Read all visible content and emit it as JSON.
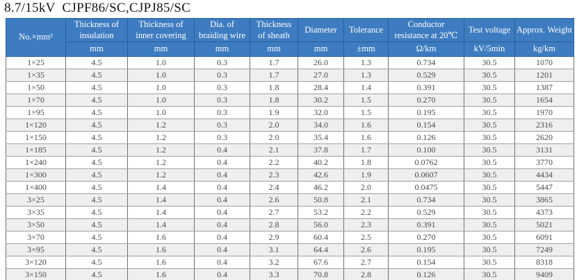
{
  "title": "8.7/15kV  CJPF86/SC,CJPJ85/SC",
  "table": {
    "columns": [
      {
        "label": "No.×mm²",
        "unit": ""
      },
      {
        "label": "Thickness of insulation",
        "unit": "mm"
      },
      {
        "label": "Thickness of inner covering",
        "unit": "mm"
      },
      {
        "label": "Dia. of braiding wire",
        "unit": "mm"
      },
      {
        "label": "Thickness of sheath",
        "unit": "mm"
      },
      {
        "label": "Diameter",
        "unit": "mm"
      },
      {
        "label": "Tolerance",
        "unit": "±mm"
      },
      {
        "label": "Conductor resistance at 20℃",
        "unit": "Ω/km"
      },
      {
        "label": "Test voltage",
        "unit": "kV/5min"
      },
      {
        "label": "Approx. Weight",
        "unit": "kg/km"
      }
    ],
    "rows": [
      [
        "1×25",
        "4.5",
        "1.0",
        "0.3",
        "1.7",
        "26.0",
        "1.3",
        "0.734",
        "30.5",
        "1070"
      ],
      [
        "1×35",
        "4.5",
        "1.0",
        "0.3",
        "1.7",
        "27.0",
        "1.3",
        "0.529",
        "30.5",
        "1201"
      ],
      [
        "1×50",
        "4.5",
        "1.0",
        "0.3",
        "1.8",
        "28.4",
        "1.4",
        "0.391",
        "30.5",
        "1387"
      ],
      [
        "1×70",
        "4.5",
        "1.0",
        "0.3",
        "1.8",
        "30.2",
        "1.5",
        "0.270",
        "30.5",
        "1654"
      ],
      [
        "1×95",
        "4.5",
        "1.0",
        "0.3",
        "1.9",
        "32.0",
        "1.5",
        "0.195",
        "30.5",
        "1970"
      ],
      [
        "1×120",
        "4.5",
        "1.2",
        "0.3",
        "2.0",
        "34.0",
        "1.6",
        "0.154",
        "30.5",
        "2316"
      ],
      [
        "1×150",
        "4.5",
        "1.2",
        "0.3",
        "2.0",
        "35.4",
        "1.6",
        "0.126",
        "30.5",
        "2620"
      ],
      [
        "1×185",
        "4.5",
        "1.2",
        "0.4",
        "2.1",
        "37.8",
        "1.7",
        "0.100",
        "30.5",
        "3131"
      ],
      [
        "1×240",
        "4.5",
        "1.2",
        "0.4",
        "2.2",
        "40.2",
        "1.8",
        "0.0762",
        "30.5",
        "3770"
      ],
      [
        "1×300",
        "4.5",
        "1.2",
        "0.4",
        "2.3",
        "42.6",
        "1.9",
        "0.0607",
        "30.5",
        "4434"
      ],
      [
        "1×400",
        "4.5",
        "1.4",
        "0.4",
        "2.4",
        "46.2",
        "2.0",
        "0.0475",
        "30.5",
        "5447"
      ],
      [
        "3×25",
        "4.5",
        "1.4",
        "0.4",
        "2.6",
        "50.8",
        "2.1",
        "0.734",
        "30.5",
        "3865"
      ],
      [
        "3×35",
        "4.5",
        "1.4",
        "0.4",
        "2.7",
        "53.2",
        "2.2",
        "0.529",
        "30.5",
        "4373"
      ],
      [
        "3×50",
        "4.5",
        "1.4",
        "0.4",
        "2.8",
        "56.0",
        "2.3",
        "0.391",
        "30.5",
        "5021"
      ],
      [
        "3×70",
        "4.5",
        "1.6",
        "0.4",
        "2.9",
        "60.4",
        "2.5",
        "0.270",
        "30.5",
        "6091"
      ],
      [
        "3×95",
        "4.5",
        "1.6",
        "0.4",
        "3.1",
        "64.4",
        "2.6",
        "0.195",
        "30.5",
        "7249"
      ],
      [
        "3×120",
        "4.5",
        "1.6",
        "0.4",
        "3.2",
        "67.6",
        "2.7",
        "0.154",
        "30.5",
        "8318"
      ],
      [
        "3×150",
        "4.5",
        "1.6",
        "0.4",
        "3.3",
        "70.8",
        "2.8",
        "0.126",
        "30.5",
        "9409"
      ]
    ]
  },
  "colors": {
    "header_bg": "#3e7cc1",
    "header_border": "#275d99",
    "row_alt_bg": "#efefef",
    "data_text": "#4a4a4a"
  }
}
